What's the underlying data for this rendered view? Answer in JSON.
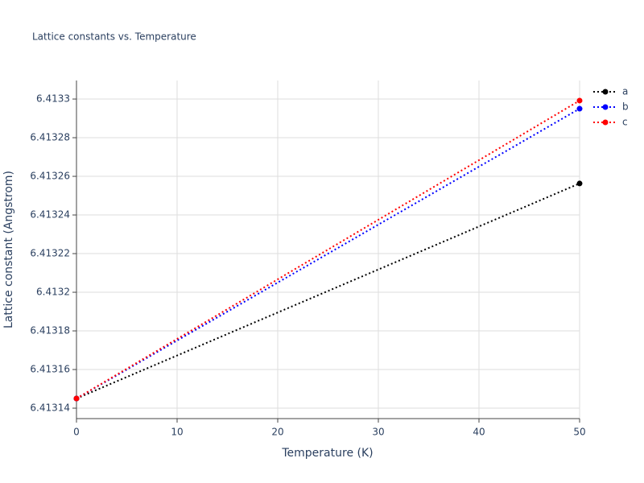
{
  "chart_data": {
    "type": "line",
    "title": "Lattice constants vs. Temperature",
    "x_label": "Temperature (K)",
    "y_label": "Lattice constant (Angstrom)",
    "x": [
      0,
      50
    ],
    "series": [
      {
        "name": "a",
        "color": "#000000",
        "values": [
          6.413145,
          6.4132563
        ]
      },
      {
        "name": "b",
        "color": "#0000ff",
        "values": [
          6.413145,
          6.413295
        ]
      },
      {
        "name": "c",
        "color": "#ff0000",
        "values": [
          6.413145,
          6.4132992
        ]
      }
    ],
    "xlim": [
      0,
      50
    ],
    "xticks": [
      0,
      10,
      20,
      30,
      40,
      50
    ],
    "ylim": [
      6.4131346,
      6.4133096
    ],
    "yticks": [
      6.41314,
      6.41316,
      6.41318,
      6.4132,
      6.41322,
      6.41324,
      6.41326,
      6.41328,
      6.4133
    ],
    "grid": true,
    "legend": "top-right"
  }
}
